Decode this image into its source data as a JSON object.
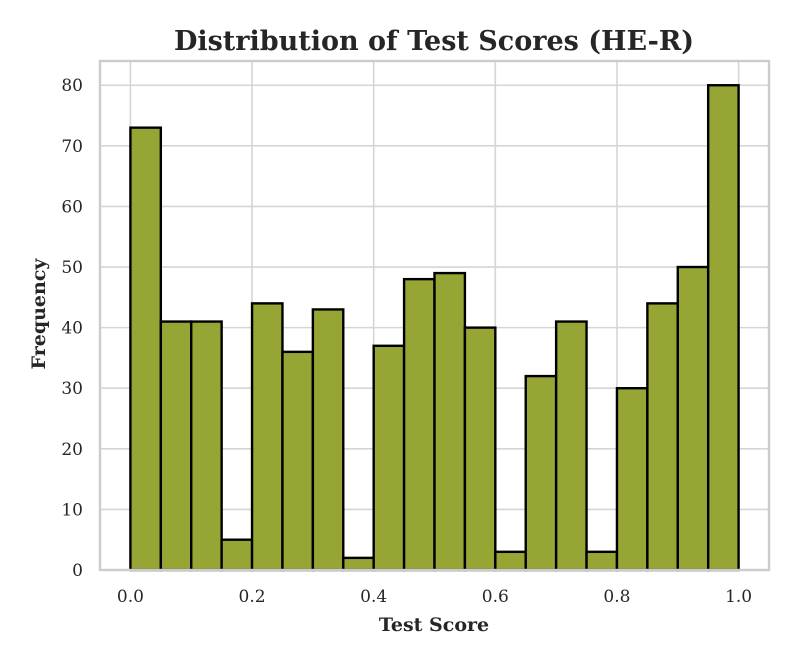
{
  "chart_data": {
    "type": "bar",
    "title": "Distribution of Test Scores (HE-R)",
    "xlabel": "Test Score",
    "ylabel": "Frequency",
    "bin_width": 0.05,
    "bin_starts": [
      0.0,
      0.05,
      0.1,
      0.15,
      0.2,
      0.25,
      0.3,
      0.35,
      0.4,
      0.45,
      0.5,
      0.55,
      0.6,
      0.65,
      0.7,
      0.75,
      0.8,
      0.85,
      0.9,
      0.95
    ],
    "values": [
      73,
      41,
      41,
      5,
      44,
      36,
      43,
      2,
      37,
      48,
      49,
      40,
      3,
      32,
      41,
      3,
      30,
      44,
      50,
      80
    ],
    "xlim": [
      -0.05,
      1.05
    ],
    "ylim": [
      0,
      84
    ],
    "x_ticks": [
      "0.0",
      "0.2",
      "0.4",
      "0.6",
      "0.8",
      "1.0"
    ],
    "y_ticks": [
      "0",
      "10",
      "20",
      "30",
      "40",
      "50",
      "60",
      "70",
      "80"
    ],
    "grid": true,
    "bar_color": "#97a534",
    "edge_color": "#000000"
  }
}
